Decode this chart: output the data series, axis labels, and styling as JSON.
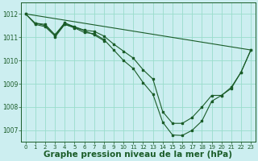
{
  "background_color": "#cceef0",
  "grid_color": "#99ddcc",
  "line_color": "#1a5c28",
  "xlabel": "Graphe pression niveau de la mer (hPa)",
  "xlabel_fontsize": 7.5,
  "xlim": [
    -0.5,
    23.5
  ],
  "ylim": [
    1006.5,
    1012.5
  ],
  "yticks": [
    1007,
    1008,
    1009,
    1010,
    1011,
    1012
  ],
  "xticks": [
    0,
    1,
    2,
    3,
    4,
    5,
    6,
    7,
    8,
    9,
    10,
    11,
    12,
    13,
    14,
    15,
    16,
    17,
    18,
    19,
    20,
    21,
    22,
    23
  ],
  "series": [
    {
      "x": [
        0,
        1,
        2,
        3,
        4,
        5,
        6,
        7,
        8,
        9,
        10,
        11,
        12,
        13,
        14,
        15,
        16,
        17,
        18,
        19,
        20,
        21,
        22,
        23
      ],
      "y": [
        1012.0,
        1011.6,
        1011.5,
        1011.1,
        1011.55,
        1011.4,
        1011.2,
        1011.15,
        1010.9,
        1010.45,
        1010.0,
        1009.65,
        1009.05,
        1008.55,
        1007.35,
        1006.8,
        1006.78,
        1007.0,
        1007.4,
        1008.25,
        1008.5,
        1008.85,
        1009.5,
        1010.45
      ]
    },
    {
      "x": [
        0,
        1,
        2,
        3,
        4,
        5,
        6,
        7,
        8,
        9,
        10,
        11,
        12,
        13,
        14,
        15,
        16,
        17,
        18,
        19,
        20,
        21,
        22,
        23
      ],
      "y": [
        1012.0,
        1011.55,
        1011.45,
        1011.05,
        1011.6,
        1011.45,
        1011.3,
        1011.25,
        1011.05,
        1010.7,
        1010.4,
        1010.1,
        1009.6,
        1009.2,
        1007.8,
        1007.3,
        1007.3,
        1007.55,
        1008.0,
        1008.5,
        1008.5,
        1008.8,
        1009.5,
        1010.45
      ]
    },
    {
      "x": [
        0,
        23
      ],
      "y": [
        1012.0,
        1010.45
      ],
      "no_marker": true
    },
    {
      "x": [
        1,
        2,
        3,
        4,
        5
      ],
      "y": [
        1011.6,
        1011.55,
        1011.1,
        1011.62,
        1011.42
      ]
    },
    {
      "x": [
        3,
        4,
        5,
        6,
        7,
        8
      ],
      "y": [
        1011.0,
        1011.55,
        1011.42,
        1011.28,
        1011.1,
        1010.85
      ]
    }
  ]
}
